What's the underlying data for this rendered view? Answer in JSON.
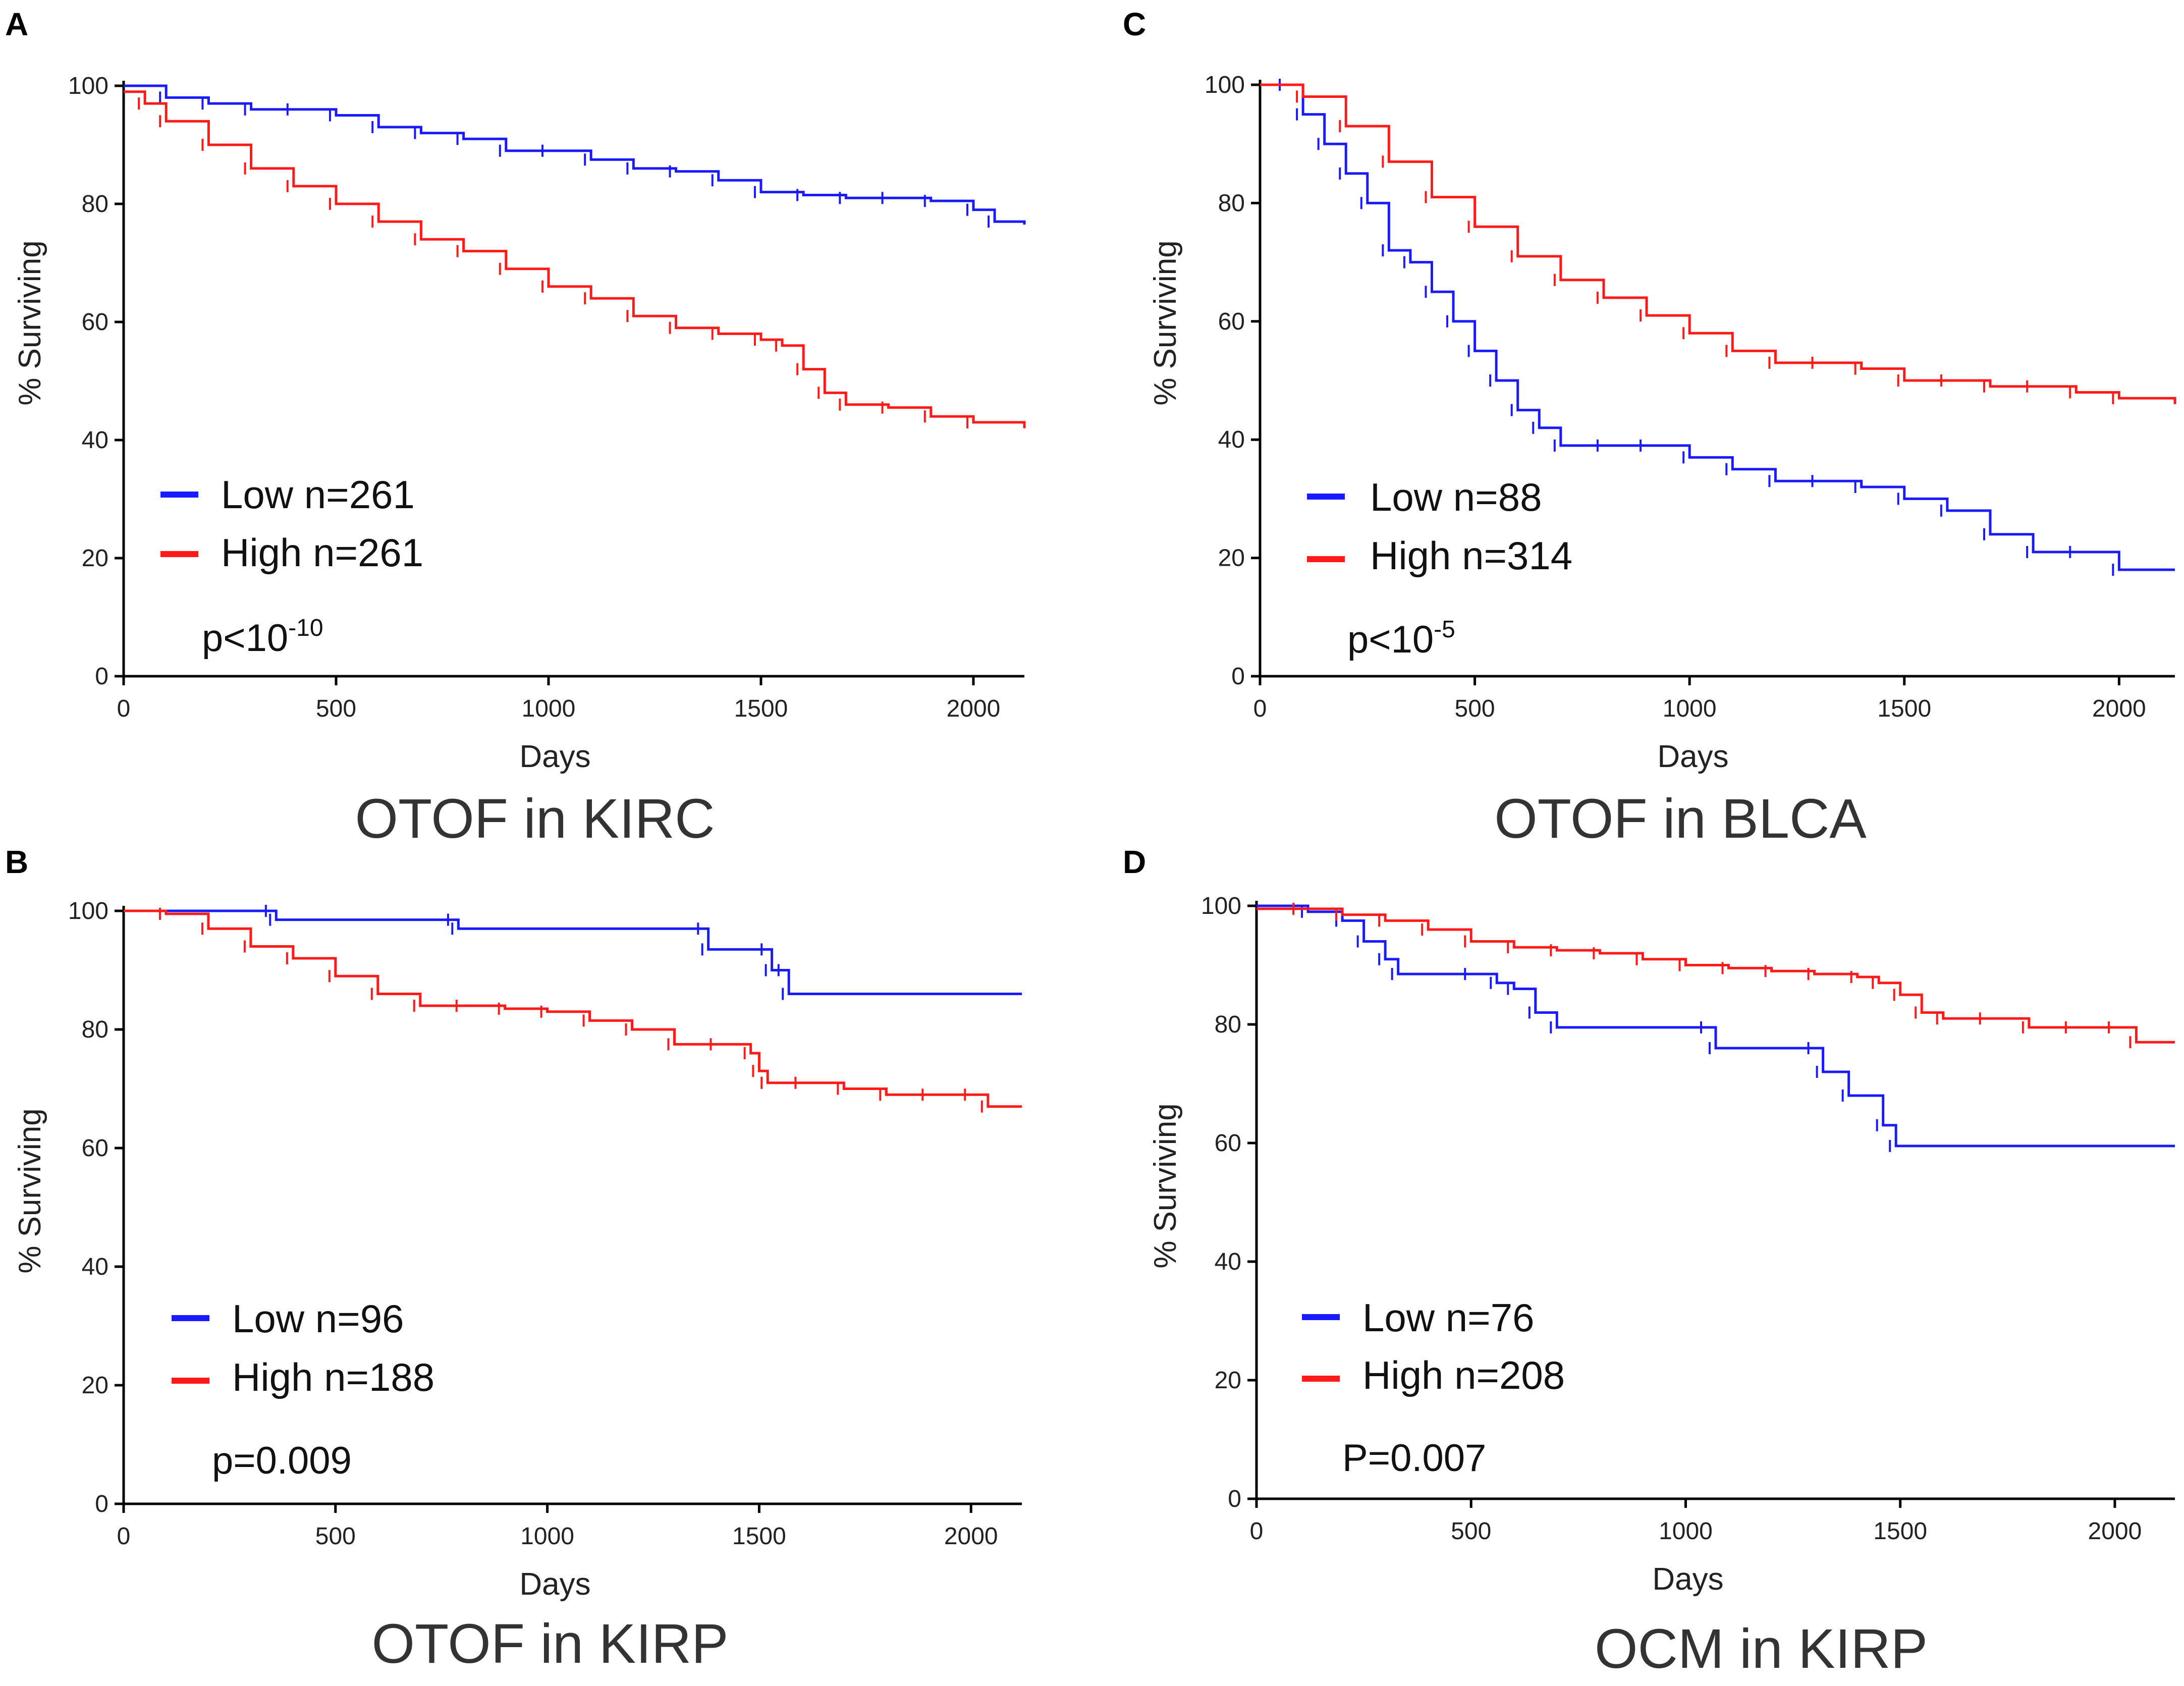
{
  "colors": {
    "low": "#1a1aff",
    "high": "#ff1a1a"
  },
  "chart_data": [
    {
      "panel": "A",
      "type": "line",
      "title": "OTOF in KIRC",
      "xlabel": "Days",
      "ylabel": "% Surviving",
      "xlim": [
        0,
        2120
      ],
      "ylim": [
        0,
        100
      ],
      "xticks": [
        0,
        500,
        1000,
        1500,
        2000
      ],
      "yticks": [
        0,
        20,
        40,
        60,
        80,
        100
      ],
      "p_value": {
        "base": "p<10",
        "sup": "-10"
      },
      "series": [
        {
          "name": "Low",
          "label": "Low n=261",
          "color": "#1a1aff",
          "x": [
            0,
            100,
            200,
            300,
            400,
            500,
            600,
            700,
            800,
            900,
            1000,
            1100,
            1200,
            1300,
            1400,
            1500,
            1600,
            1700,
            1800,
            1900,
            2000,
            2050,
            2120
          ],
          "y": [
            100,
            98,
            97,
            96,
            96,
            95,
            93,
            92,
            91,
            89,
            89,
            87.5,
            86,
            85.5,
            84,
            82,
            81.5,
            81,
            81,
            80.5,
            79,
            77,
            76.5
          ]
        },
        {
          "name": "High",
          "label": "High n=261",
          "color": "#ff1a1a",
          "x": [
            0,
            50,
            100,
            200,
            300,
            400,
            500,
            600,
            700,
            800,
            900,
            1000,
            1100,
            1200,
            1300,
            1400,
            1500,
            1550,
            1600,
            1650,
            1700,
            1800,
            1900,
            2000,
            2120
          ],
          "y": [
            99,
            97,
            94,
            90,
            86,
            83,
            80,
            77,
            74,
            72,
            69,
            66,
            64,
            61,
            59,
            58,
            57,
            56,
            52,
            48,
            46,
            45.5,
            44,
            43,
            42
          ]
        }
      ]
    },
    {
      "panel": "C",
      "type": "line",
      "title": "OTOF in BLCA",
      "xlabel": "Days",
      "ylabel": "% Surviving",
      "xlim": [
        0,
        2130
      ],
      "ylim": [
        0,
        100
      ],
      "xticks": [
        0,
        500,
        1000,
        1500,
        2000
      ],
      "yticks": [
        0,
        20,
        40,
        60,
        80,
        100
      ],
      "p_value": {
        "base": "p<10",
        "sup": "-5"
      },
      "series": [
        {
          "name": "Low",
          "label": "Low n=88",
          "color": "#1a1aff",
          "x": [
            0,
            60,
            100,
            150,
            200,
            250,
            300,
            350,
            400,
            450,
            500,
            550,
            600,
            650,
            700,
            800,
            900,
            1000,
            1100,
            1200,
            1300,
            1400,
            1500,
            1600,
            1700,
            1800,
            1900,
            2000,
            2130
          ],
          "y": [
            100,
            100,
            95,
            90,
            85,
            80,
            72,
            70,
            65,
            60,
            55,
            50,
            45,
            42,
            39,
            39,
            39,
            37,
            35,
            33,
            33,
            32,
            30,
            28,
            24,
            21,
            21,
            18,
            18
          ]
        },
        {
          "name": "High",
          "label": "High n=314",
          "color": "#ff1a1a",
          "x": [
            0,
            100,
            200,
            300,
            400,
            500,
            600,
            700,
            800,
            900,
            1000,
            1100,
            1200,
            1300,
            1400,
            1500,
            1600,
            1700,
            1800,
            1900,
            2000,
            2130
          ],
          "y": [
            100,
            98,
            93,
            87,
            81,
            76,
            71,
            67,
            64,
            61,
            58,
            55,
            53,
            53,
            52,
            50,
            50,
            49,
            49,
            48,
            47,
            46
          ]
        }
      ]
    },
    {
      "panel": "B",
      "type": "line",
      "title": "OTOF in KIRP",
      "xlabel": "Days",
      "ylabel": "% Surviving",
      "xlim": [
        0,
        2120
      ],
      "ylim": [
        0,
        100
      ],
      "xticks": [
        0,
        500,
        1000,
        1500,
        2000
      ],
      "yticks": [
        0,
        20,
        40,
        60,
        80,
        100
      ],
      "p_value": {
        "base": "p=0.009",
        "sup": ""
      },
      "series": [
        {
          "name": "Low",
          "label": "Low n=96",
          "color": "#1a1aff",
          "x": [
            0,
            350,
            360,
            780,
            790,
            1370,
            1380,
            1520,
            1530,
            1560,
            1570,
            2120
          ],
          "y": [
            100,
            100,
            98.5,
            98.5,
            97,
            97,
            93.5,
            93.5,
            90,
            90,
            86,
            86
          ]
        },
        {
          "name": "High",
          "label": "High n=188",
          "color": "#ff1a1a",
          "x": [
            0,
            100,
            200,
            300,
            400,
            500,
            600,
            700,
            800,
            900,
            1000,
            1100,
            1200,
            1300,
            1400,
            1480,
            1500,
            1520,
            1600,
            1700,
            1800,
            1900,
            2000,
            2040,
            2120
          ],
          "y": [
            100,
            99.5,
            97,
            94,
            92,
            89,
            86,
            84,
            84,
            83.5,
            83,
            81.5,
            80,
            77.5,
            77.5,
            76,
            73,
            71,
            71,
            70,
            69,
            69,
            69,
            67,
            67
          ]
        }
      ]
    },
    {
      "panel": "D",
      "type": "line",
      "title": "OCM in KIRP",
      "xlabel": "Days",
      "ylabel": "% Surviving",
      "xlim": [
        0,
        2140
      ],
      "ylim": [
        0,
        100
      ],
      "xticks": [
        0,
        500,
        1000,
        1500,
        2000
      ],
      "yticks": [
        0,
        20,
        40,
        60,
        80,
        100
      ],
      "p_value": {
        "base": "P=0.007",
        "sup": ""
      },
      "series": [
        {
          "name": "Low",
          "label": "Low n=76",
          "color": "#1a1aff",
          "x": [
            0,
            120,
            200,
            250,
            300,
            330,
            500,
            560,
            600,
            650,
            700,
            1050,
            1070,
            1300,
            1320,
            1380,
            1460,
            1490,
            2140
          ],
          "y": [
            100,
            99,
            97.5,
            94,
            91,
            88.5,
            88.5,
            87,
            86,
            82,
            79.5,
            79.5,
            76,
            76,
            72,
            68,
            63,
            59.5,
            59.5
          ]
        },
        {
          "name": "High",
          "label": "High n=208",
          "color": "#ff1a1a",
          "x": [
            0,
            100,
            200,
            300,
            400,
            500,
            600,
            700,
            800,
            900,
            1000,
            1100,
            1200,
            1300,
            1400,
            1450,
            1500,
            1550,
            1600,
            1700,
            1800,
            1900,
            2000,
            2050,
            2140
          ],
          "y": [
            99.5,
            99.5,
            98.5,
            97.5,
            96,
            94,
            93,
            92.5,
            92,
            91,
            90,
            89.5,
            89,
            88.5,
            88,
            87,
            85,
            82,
            81,
            81,
            79.5,
            79.5,
            79.5,
            77,
            77
          ]
        }
      ]
    }
  ]
}
